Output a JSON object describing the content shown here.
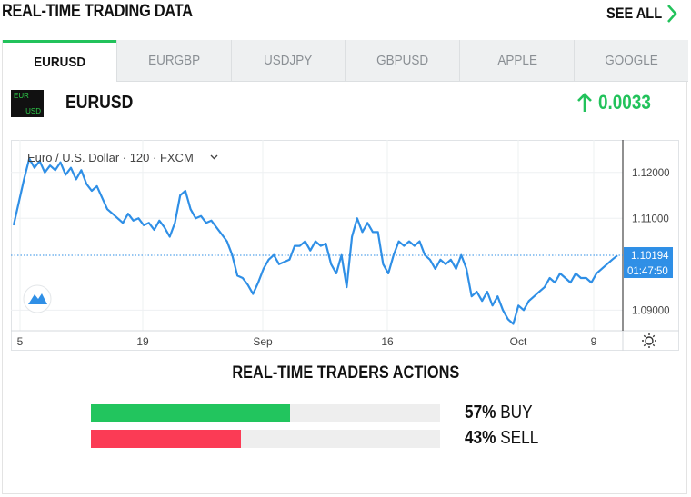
{
  "header": {
    "title": "REAL-TIME TRADING DATA",
    "see_all": "SEE ALL"
  },
  "tabs": [
    {
      "label": "EURUSD",
      "active": true
    },
    {
      "label": "EURGBP",
      "active": false
    },
    {
      "label": "USDJPY",
      "active": false
    },
    {
      "label": "GBPUSD",
      "active": false
    },
    {
      "label": "APPLE",
      "active": false
    },
    {
      "label": "GOOGLE",
      "active": false
    }
  ],
  "pair": {
    "flag_top": "EUR",
    "flag_bottom": "USD",
    "name": "EURUSD",
    "change": "0.0033"
  },
  "chart_data": {
    "type": "line",
    "title": "Euro / U.S. Dollar · 120 · FXCM",
    "x_ticks": [
      "5",
      "19",
      "Sep",
      "16",
      "Oct",
      "9"
    ],
    "y_ticks": [
      "1.12000",
      "1.11000",
      "1.09000"
    ],
    "ylim": [
      1.0865,
      1.1255
    ],
    "current_price": "1.10194",
    "countdown": "01:47:50",
    "series": [
      {
        "values": [
          1.1085,
          1.1135,
          1.1185,
          1.123,
          1.121,
          1.1225,
          1.12,
          1.1215,
          1.1205,
          1.1222,
          1.1195,
          1.121,
          1.1185,
          1.1205,
          1.1175,
          1.116,
          1.117,
          1.1145,
          1.112,
          1.111,
          1.11,
          1.109,
          1.111,
          1.1095,
          1.11,
          1.1085,
          1.109,
          1.1075,
          1.1095,
          1.108,
          1.106,
          1.109,
          1.115,
          1.116,
          1.112,
          1.11,
          1.1105,
          1.109,
          1.1095,
          1.108,
          1.1065,
          1.105,
          1.102,
          1.0975,
          1.097,
          1.0955,
          1.0935,
          1.096,
          1.099,
          1.101,
          1.102,
          1.1,
          1.1005,
          1.101,
          1.104,
          1.104,
          1.105,
          1.103,
          1.105,
          1.104,
          1.1045,
          1.1,
          1.098,
          1.102,
          1.095,
          1.106,
          1.11,
          1.107,
          1.109,
          1.107,
          1.107,
          1.1,
          1.098,
          1.102,
          1.105,
          1.104,
          1.105,
          1.104,
          1.105,
          1.102,
          1.101,
          1.099,
          1.101,
          1.1,
          1.101,
          1.099,
          1.102,
          1.099,
          1.093,
          1.094,
          1.092,
          1.094,
          1.091,
          1.093,
          1.09,
          1.088,
          1.087,
          1.091,
          1.09,
          1.092,
          1.093,
          1.094,
          1.095,
          1.097,
          1.096,
          1.098,
          1.097,
          1.096,
          1.098,
          1.097,
          1.097,
          1.096,
          1.098,
          1.099,
          1.1,
          1.101,
          1.1019
        ]
      }
    ]
  },
  "traders_actions": {
    "title": "REAL-TIME TRADERS ACTIONS",
    "buy": {
      "percent": 57,
      "label": "57%",
      "side": "BUY",
      "color": "#22c55e"
    },
    "sell": {
      "percent": 43,
      "label": "43%",
      "side": "SELL",
      "color": "#fb3b55"
    }
  },
  "colors": {
    "accent": "#22c25b",
    "line": "#2f8fe6"
  }
}
